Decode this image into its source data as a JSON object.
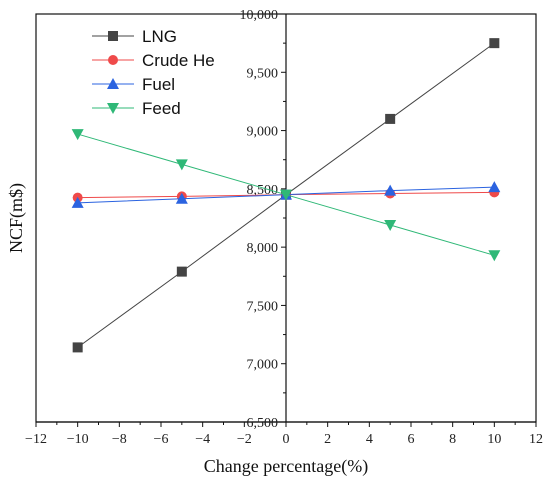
{
  "chart_data": {
    "type": "line",
    "xlabel": "Change percentage(%)",
    "ylabel": "NCF(m$)",
    "xlim": [
      -12,
      12
    ],
    "ylim": [
      6500,
      10000
    ],
    "x_ticks": [
      -12,
      -10,
      -8,
      -6,
      -4,
      -2,
      0,
      2,
      4,
      6,
      8,
      10,
      12
    ],
    "x_tick_labels": [
      "−12",
      "−10",
      "−8",
      "−6",
      "−4",
      "−2",
      "0",
      "2",
      "4",
      "6",
      "8",
      "10",
      "12"
    ],
    "y_ticks": [
      6500,
      7000,
      7500,
      8000,
      8500,
      9000,
      9500,
      10000
    ],
    "y_tick_labels": [
      "6,500",
      "7,000",
      "7,500",
      "8,000",
      "8,500",
      "9,000",
      "9,500",
      "10,000"
    ],
    "grid": false,
    "axes_cross_at_zero": true,
    "legend_position": "top-left",
    "series": [
      {
        "name": "LNG",
        "color": "#444444",
        "marker": "square",
        "x": [
          -10,
          -5,
          0,
          5,
          10
        ],
        "y": [
          7140,
          7790,
          8450,
          9100,
          9750
        ]
      },
      {
        "name": "Crude He",
        "color": "#ef4a4a",
        "marker": "circle",
        "x": [
          -10,
          -5,
          0,
          5,
          10
        ],
        "y": [
          8425,
          8435,
          8450,
          8460,
          8470
        ]
      },
      {
        "name": "Fuel",
        "color": "#2b63e0",
        "marker": "triangle-up",
        "x": [
          -10,
          -5,
          0,
          5,
          10
        ],
        "y": [
          8380,
          8415,
          8450,
          8485,
          8515
        ]
      },
      {
        "name": "Feed",
        "color": "#2fb877",
        "marker": "triangle-down",
        "x": [
          -10,
          -5,
          0,
          5,
          10
        ],
        "y": [
          8970,
          8710,
          8450,
          8190,
          7930
        ]
      }
    ]
  }
}
